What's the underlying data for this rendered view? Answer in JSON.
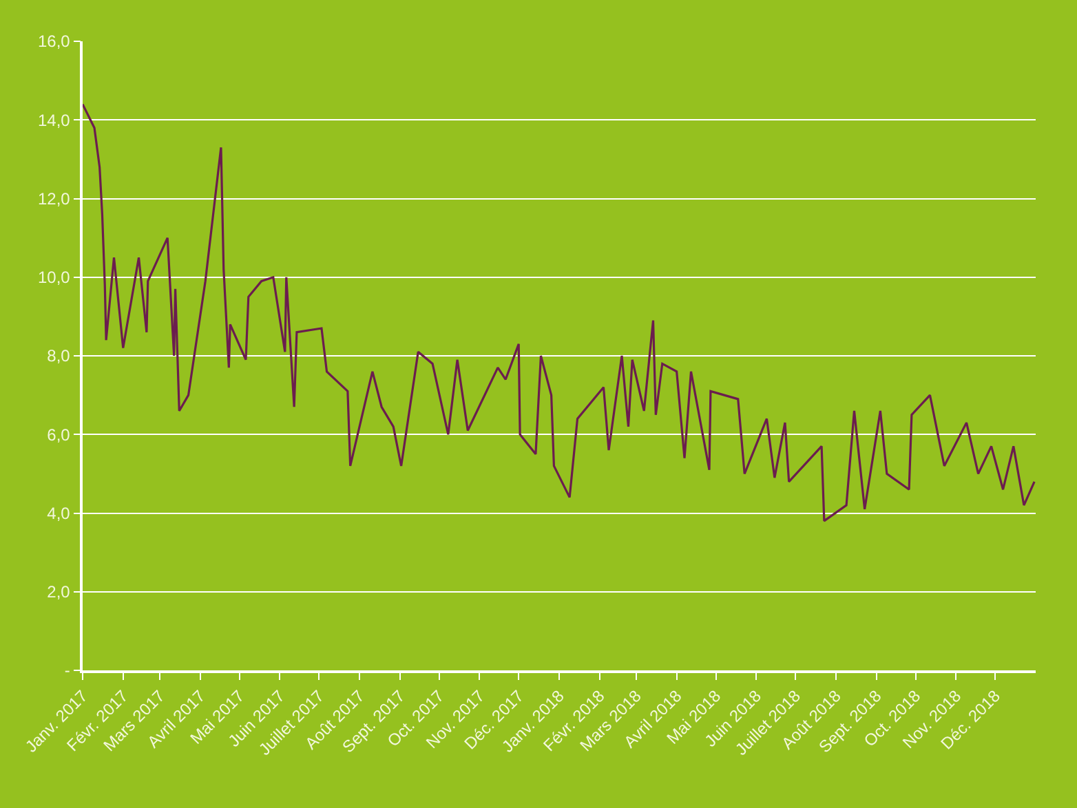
{
  "chart_data": {
    "type": "line",
    "x": [
      "2017-01-01",
      "2017-01-10",
      "2017-01-14",
      "2017-01-16",
      "2017-01-18",
      "2017-01-19",
      "2017-01-25",
      "2017-02-01",
      "2017-02-13",
      "2017-02-19",
      "2017-02-20",
      "2017-03-07",
      "2017-03-12",
      "2017-03-13",
      "2017-03-16",
      "2017-03-23",
      "2017-04-05",
      "2017-04-11",
      "2017-04-17",
      "2017-04-19",
      "2017-04-23",
      "2017-04-24",
      "2017-05-06",
      "2017-05-08",
      "2017-05-18",
      "2017-05-27",
      "2017-06-05",
      "2017-06-06",
      "2017-06-12",
      "2017-06-14",
      "2017-07-03",
      "2017-07-07",
      "2017-07-23",
      "2017-07-25",
      "2017-08-11",
      "2017-08-18",
      "2017-08-27",
      "2017-09-02",
      "2017-09-15",
      "2017-09-26",
      "2017-10-08",
      "2017-10-15",
      "2017-10-23",
      "2017-11-15",
      "2017-11-21",
      "2017-12-01",
      "2017-12-02",
      "2017-12-14",
      "2017-12-18",
      "2017-12-26",
      "2017-12-28",
      "2018-01-09",
      "2018-01-15",
      "2018-02-04",
      "2018-02-08",
      "2018-02-18",
      "2018-02-23",
      "2018-02-26",
      "2018-03-07",
      "2018-03-14",
      "2018-03-16",
      "2018-03-21",
      "2018-04-01",
      "2018-04-07",
      "2018-04-12",
      "2018-04-26",
      "2018-04-27",
      "2018-05-18",
      "2018-05-23",
      "2018-06-09",
      "2018-06-15",
      "2018-06-23",
      "2018-06-26",
      "2018-07-21",
      "2018-07-23",
      "2018-08-09",
      "2018-08-15",
      "2018-08-23",
      "2018-09-04",
      "2018-09-09",
      "2018-09-26",
      "2018-09-28",
      "2018-10-12",
      "2018-10-23",
      "2018-11-09",
      "2018-11-18",
      "2018-11-28",
      "2018-12-07",
      "2018-12-15",
      "2018-12-23",
      "2018-12-31"
    ],
    "series": [
      {
        "color": "#6b1d4f",
        "values": [
          14.4,
          13.8,
          12.8,
          11.6,
          9.8,
          8.4,
          10.5,
          8.2,
          10.5,
          8.6,
          9.9,
          11.0,
          8.0,
          9.7,
          6.6,
          7.0,
          9.9,
          11.6,
          13.3,
          10.2,
          7.7,
          8.8,
          7.9,
          9.5,
          9.9,
          10.0,
          8.1,
          10.0,
          6.7,
          8.6,
          8.7,
          7.6,
          7.1,
          5.2,
          7.6,
          6.7,
          6.2,
          5.2,
          8.1,
          7.8,
          6.0,
          7.9,
          6.1,
          7.7,
          7.4,
          8.3,
          6.0,
          5.5,
          8.0,
          7.0,
          5.2,
          4.4,
          6.4,
          7.2,
          5.6,
          8.0,
          6.2,
          7.9,
          6.6,
          8.9,
          6.5,
          7.8,
          7.6,
          5.4,
          7.6,
          5.1,
          7.1,
          6.9,
          5.0,
          6.4,
          4.9,
          6.3,
          4.8,
          5.7,
          3.8,
          4.2,
          6.6,
          4.1,
          6.6,
          5.0,
          4.6,
          6.5,
          7.0,
          5.2,
          6.3,
          5.0,
          5.7,
          4.6,
          5.7,
          4.2,
          4.8
        ]
      }
    ],
    "xlim": [
      "2017-01-01",
      "2019-01-01"
    ],
    "xticks": [
      {
        "value": "2017-01-01",
        "label": "Janv. 2017"
      },
      {
        "value": "2017-02-01",
        "label": "Févr. 2017"
      },
      {
        "value": "2017-03-01",
        "label": "Mars 2017"
      },
      {
        "value": "2017-04-01",
        "label": "Avril 2017"
      },
      {
        "value": "2017-05-01",
        "label": "Mai 2017"
      },
      {
        "value": "2017-06-01",
        "label": "Juin 2017"
      },
      {
        "value": "2017-07-01",
        "label": "Juillet 2017"
      },
      {
        "value": "2017-08-01",
        "label": "Août 2017"
      },
      {
        "value": "2017-09-01",
        "label": "Sept. 2017"
      },
      {
        "value": "2017-10-01",
        "label": "Oct. 2017"
      },
      {
        "value": "2017-11-01",
        "label": "Nov. 2017"
      },
      {
        "value": "2017-12-01",
        "label": "Déc. 2017"
      },
      {
        "value": "2018-01-01",
        "label": "Janv. 2018"
      },
      {
        "value": "2018-02-01",
        "label": "Févr. 2018"
      },
      {
        "value": "2018-03-01",
        "label": "Mars 2018"
      },
      {
        "value": "2018-04-01",
        "label": "Avril 2018"
      },
      {
        "value": "2018-05-01",
        "label": "Mai 2018"
      },
      {
        "value": "2018-06-01",
        "label": "Juin 2018"
      },
      {
        "value": "2018-07-01",
        "label": "Juillet 2018"
      },
      {
        "value": "2018-08-01",
        "label": "Août 2018"
      },
      {
        "value": "2018-09-01",
        "label": "Sept. 2018"
      },
      {
        "value": "2018-10-01",
        "label": "Oct. 2018"
      },
      {
        "value": "2018-11-01",
        "label": "Nov. 2018"
      },
      {
        "value": "2018-12-01",
        "label": "Déc. 2018"
      }
    ],
    "ylim": [
      0,
      16
    ],
    "yticks": [
      {
        "value": 0,
        "label": "-"
      },
      {
        "value": 2,
        "label": "2,0"
      },
      {
        "value": 4,
        "label": "4,0"
      },
      {
        "value": 6,
        "label": "6,0"
      },
      {
        "value": 8,
        "label": "8,0"
      },
      {
        "value": 10,
        "label": "10,0"
      },
      {
        "value": 12,
        "label": "12,0"
      },
      {
        "value": 14,
        "label": "14,0"
      },
      {
        "value": 16,
        "label": "16,0"
      }
    ],
    "grid": "y",
    "marker": "none",
    "line_style": "solid"
  }
}
